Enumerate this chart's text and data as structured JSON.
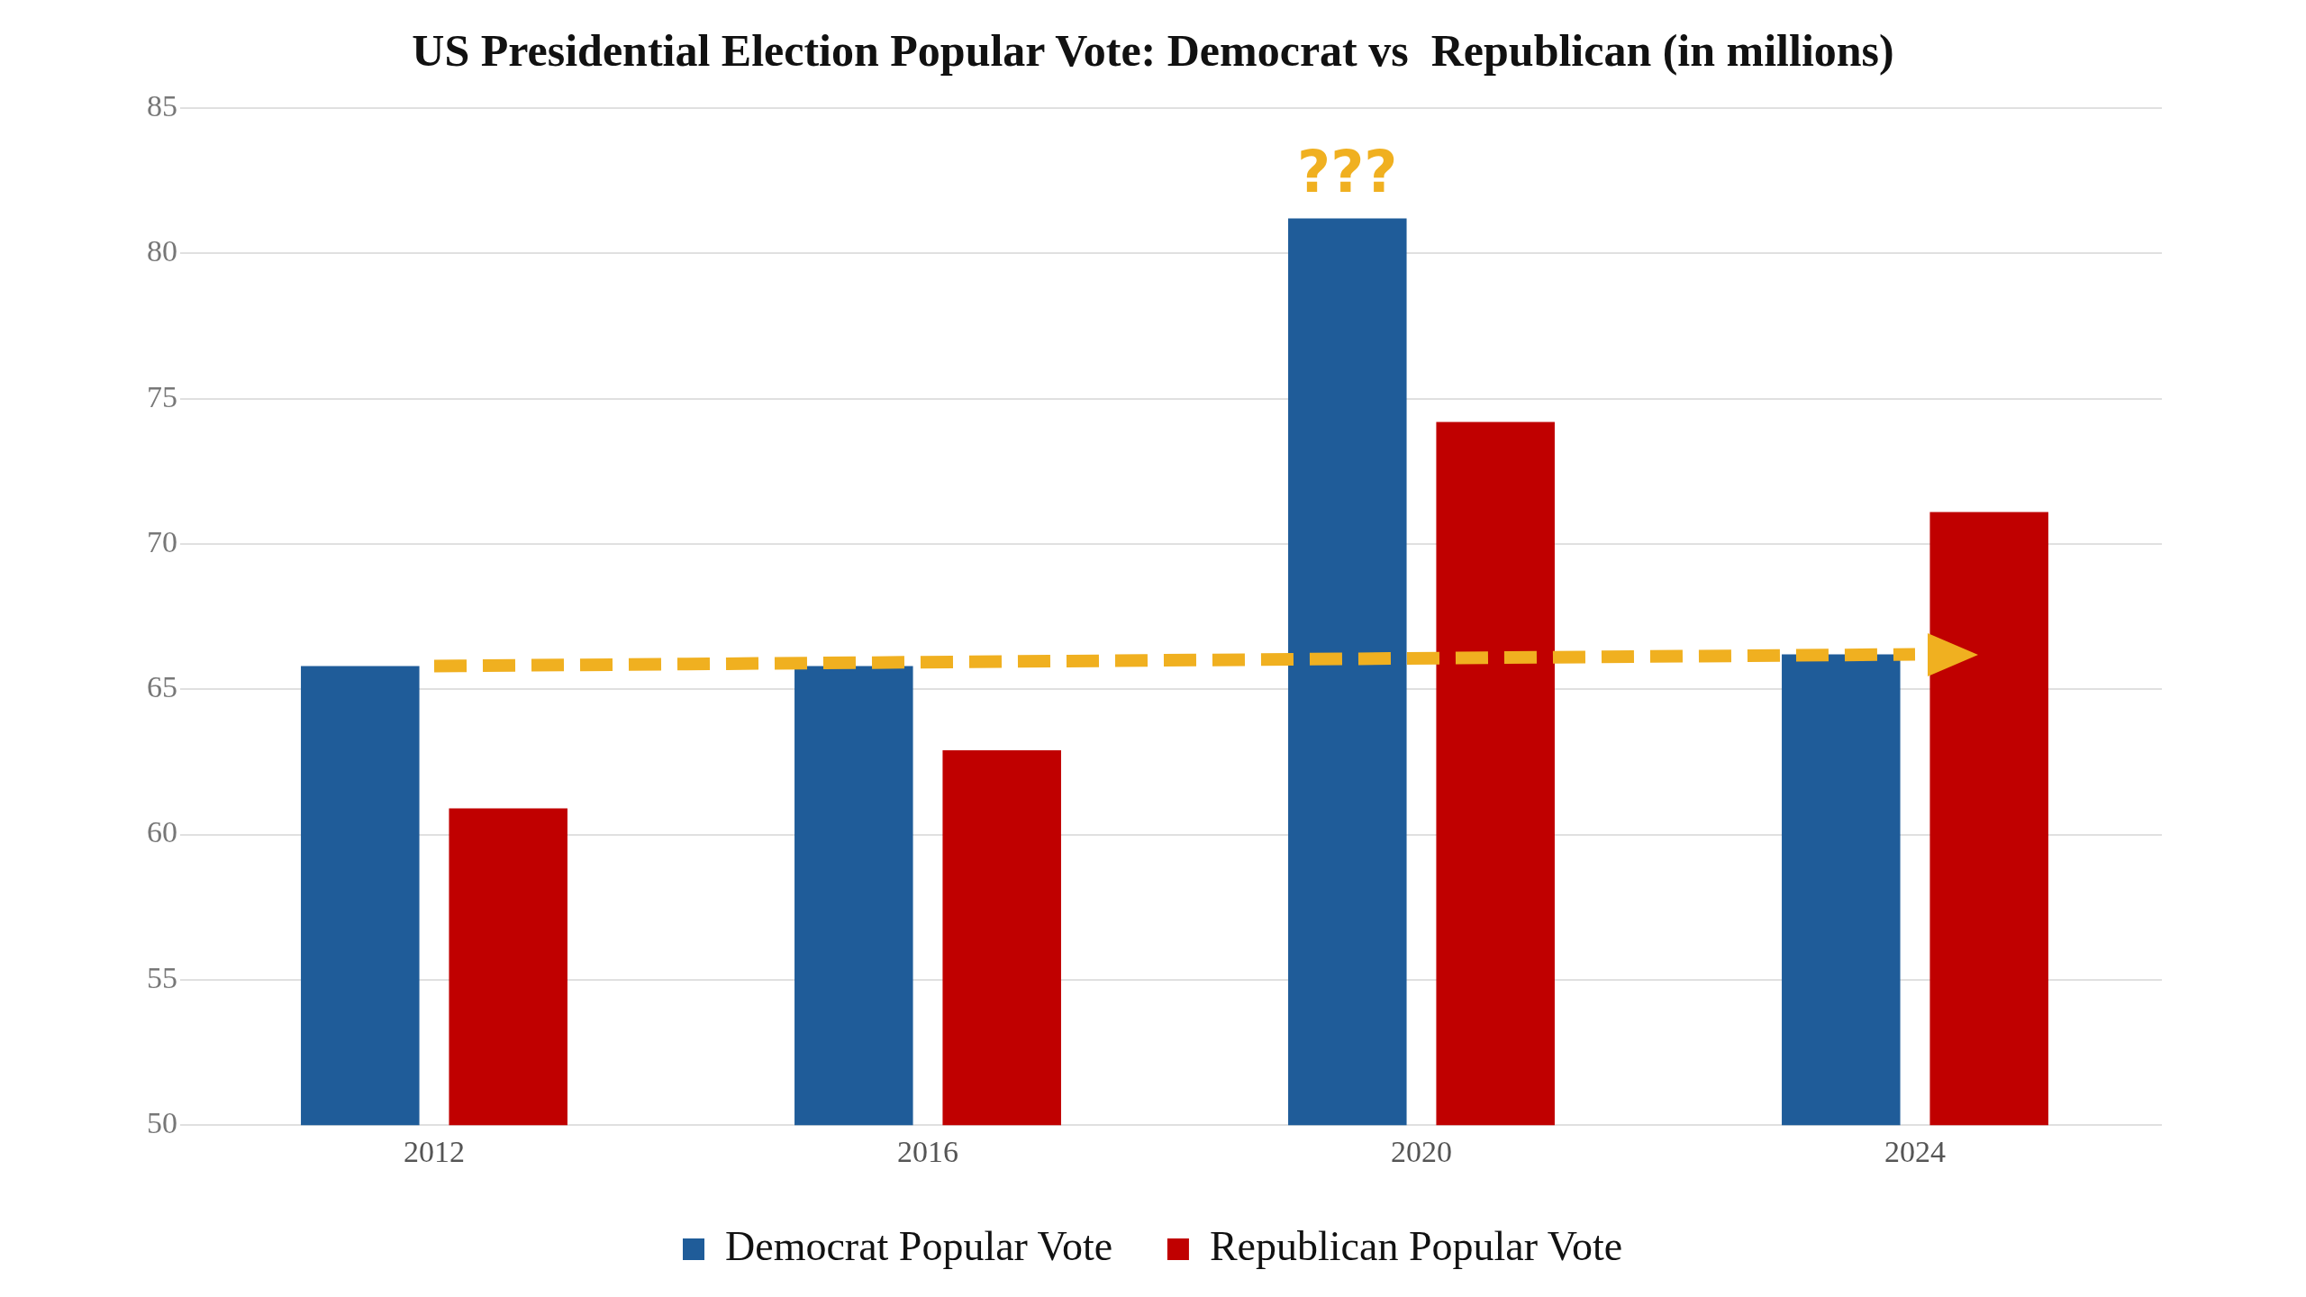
{
  "chart_data": {
    "type": "bar",
    "title": "US Presidential Election Popular Vote: Democrat vs  Republican (in millions)",
    "categories": [
      "2012",
      "2016",
      "2020",
      "2024"
    ],
    "series": [
      {
        "name": "Democrat Popular Vote",
        "color": "#1f5c99",
        "values": [
          65.8,
          65.8,
          81.2,
          66.2
        ]
      },
      {
        "name": "Republican Popular Vote",
        "color": "#c00000",
        "values": [
          60.9,
          62.9,
          74.2,
          71.1
        ]
      },
      {
        "type": "line",
        "color": "#f0b020",
        "values": [
          65.8,
          null,
          null,
          66.2
        ],
        "line_style": "dashed",
        "marker": "none"
      }
    ],
    "ylim": [
      50,
      85
    ],
    "yticks": [
      50,
      55,
      60,
      65,
      70,
      75,
      80,
      85
    ],
    "grid": "y",
    "legend": "bottom",
    "annotations": [
      "???"
    ]
  }
}
